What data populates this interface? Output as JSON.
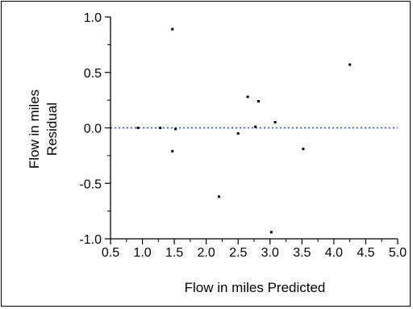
{
  "chart_data": {
    "type": "scatter",
    "title": "",
    "xlabel": "Flow in miles Predicted",
    "ylabel_lines": [
      "Flow in miles",
      "Residual"
    ],
    "xlim": [
      0.5,
      5.0
    ],
    "ylim": [
      -1.0,
      1.0
    ],
    "x_ticks": [
      0.5,
      1.0,
      1.5,
      2.0,
      2.5,
      3.0,
      3.5,
      4.0,
      4.5,
      5.0
    ],
    "x_tick_labels": [
      "0.5",
      "1.0",
      "1.5",
      "2.0",
      "2.5",
      "3.0",
      "3.5",
      "4.0",
      "4.5",
      "5.0"
    ],
    "y_ticks": [
      1.0,
      0.5,
      0.0,
      -0.5,
      -1.0
    ],
    "y_tick_labels": [
      "1.0",
      "0.5",
      "0.0",
      "-0.5",
      "-1.0"
    ],
    "reference_line": {
      "y": 0.0,
      "color": "#1f4fd6",
      "style": "dotted"
    },
    "grid": false,
    "legend": "none",
    "point_color": "#000000",
    "series": [
      {
        "points": [
          {
            "x": 0.93,
            "y": 0.0
          },
          {
            "x": 1.28,
            "y": 0.0
          },
          {
            "x": 1.47,
            "y": 0.89
          },
          {
            "x": 1.47,
            "y": -0.21
          },
          {
            "x": 1.52,
            "y": -0.01
          },
          {
            "x": 2.2,
            "y": -0.62
          },
          {
            "x": 2.5,
            "y": -0.05
          },
          {
            "x": 2.65,
            "y": 0.28
          },
          {
            "x": 2.77,
            "y": 0.01
          },
          {
            "x": 2.82,
            "y": 0.24
          },
          {
            "x": 3.02,
            "y": -0.94
          },
          {
            "x": 3.08,
            "y": 0.05
          },
          {
            "x": 3.52,
            "y": -0.19
          },
          {
            "x": 4.25,
            "y": 0.57
          }
        ]
      }
    ]
  }
}
